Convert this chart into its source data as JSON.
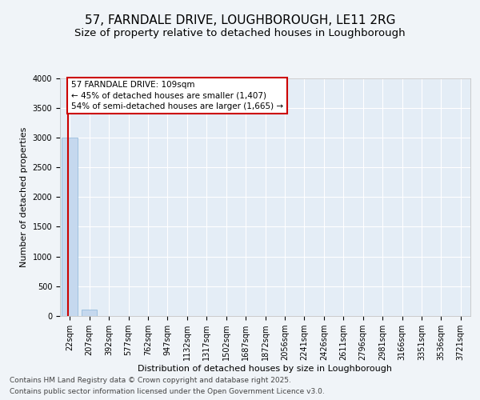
{
  "title1": "57, FARNDALE DRIVE, LOUGHBOROUGH, LE11 2RG",
  "title2": "Size of property relative to detached houses in Loughborough",
  "xlabel": "Distribution of detached houses by size in Loughborough",
  "ylabel": "Number of detached properties",
  "categories": [
    "22sqm",
    "207sqm",
    "392sqm",
    "577sqm",
    "762sqm",
    "947sqm",
    "1132sqm",
    "1317sqm",
    "1502sqm",
    "1687sqm",
    "1872sqm",
    "2056sqm",
    "2241sqm",
    "2426sqm",
    "2611sqm",
    "2796sqm",
    "2981sqm",
    "3166sqm",
    "3351sqm",
    "3536sqm",
    "3721sqm"
  ],
  "values": [
    3000,
    105,
    0,
    0,
    0,
    0,
    0,
    0,
    0,
    0,
    0,
    0,
    0,
    0,
    0,
    0,
    0,
    0,
    0,
    0,
    0
  ],
  "bar_color": "#c5d8ee",
  "bar_edge_color": "#8ab4d8",
  "ylim": [
    0,
    4000
  ],
  "yticks": [
    0,
    500,
    1000,
    1500,
    2000,
    2500,
    3000,
    3500,
    4000
  ],
  "property_line_color": "#cc0000",
  "property_line_xidx": -0.08,
  "annotation_text": "57 FARNDALE DRIVE: 109sqm\n← 45% of detached houses are smaller (1,407)\n54% of semi-detached houses are larger (1,665) →",
  "annotation_edge_color": "#cc0000",
  "bg_color": "#f0f4f8",
  "plot_bg_color": "#e4edf6",
  "grid_color": "#ffffff",
  "footer1": "Contains HM Land Registry data © Crown copyright and database right 2025.",
  "footer2": "Contains public sector information licensed under the Open Government Licence v3.0.",
  "title1_fontsize": 11,
  "title2_fontsize": 9.5,
  "axis_label_fontsize": 8,
  "tick_fontsize": 7,
  "footer_fontsize": 6.5,
  "annot_fontsize": 7.5
}
